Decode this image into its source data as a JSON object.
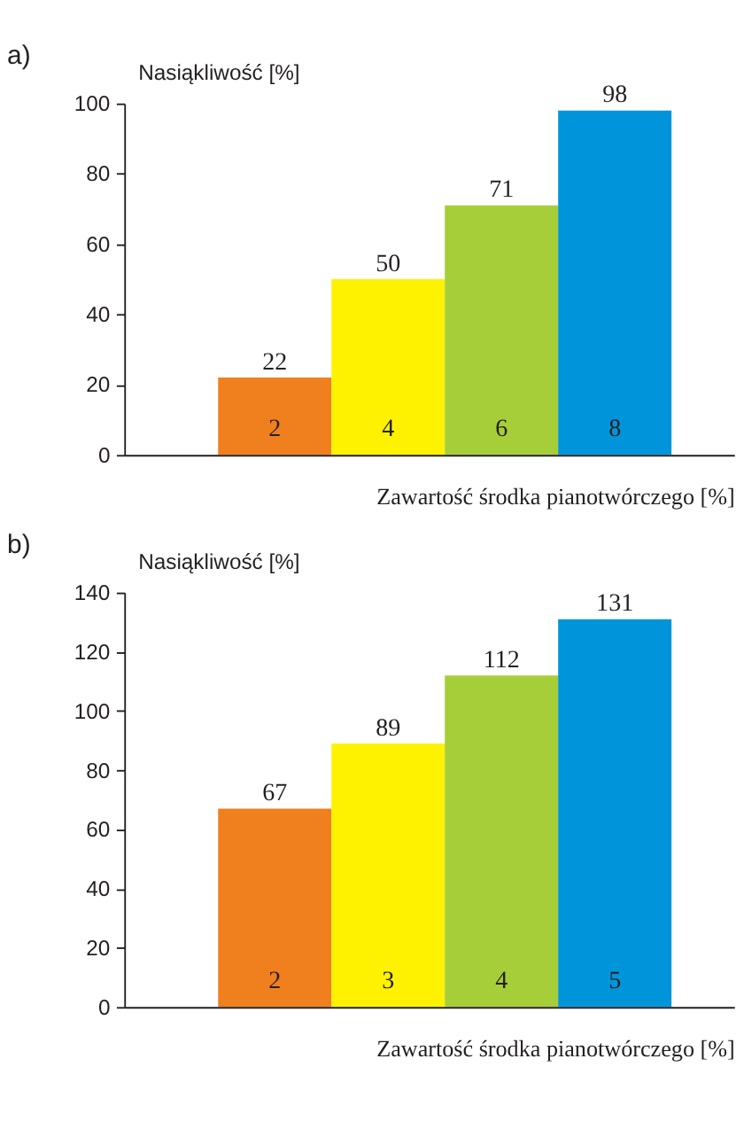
{
  "chart_data": [
    {
      "type": "bar",
      "title": "a)",
      "xlabel": "Zawartość środka pianotwórczego [%]",
      "ylabel": "Nasiąkliwość [%]",
      "categories": [
        "2",
        "4",
        "6",
        "8"
      ],
      "values": [
        22,
        50,
        71,
        98
      ],
      "colors": [
        "#f07f1e",
        "#fff200",
        "#a6ce39",
        "#0095da"
      ],
      "ylim": [
        0,
        100
      ],
      "yticks": [
        0,
        20,
        40,
        60,
        80,
        100
      ],
      "data_labels": true,
      "grid": false,
      "legend": false
    },
    {
      "type": "bar",
      "title": "b)",
      "xlabel": "Zawartość środka pianotwórczego [%]",
      "ylabel": "Nasiąkliwość [%]",
      "categories": [
        "2",
        "3",
        "4",
        "5"
      ],
      "values": [
        67,
        89,
        112,
        131
      ],
      "colors": [
        "#f07f1e",
        "#fff200",
        "#a6ce39",
        "#0095da"
      ],
      "ylim": [
        0,
        140
      ],
      "yticks": [
        0,
        20,
        40,
        60,
        80,
        100,
        120,
        140
      ],
      "data_labels": true,
      "grid": false,
      "legend": false
    }
  ]
}
